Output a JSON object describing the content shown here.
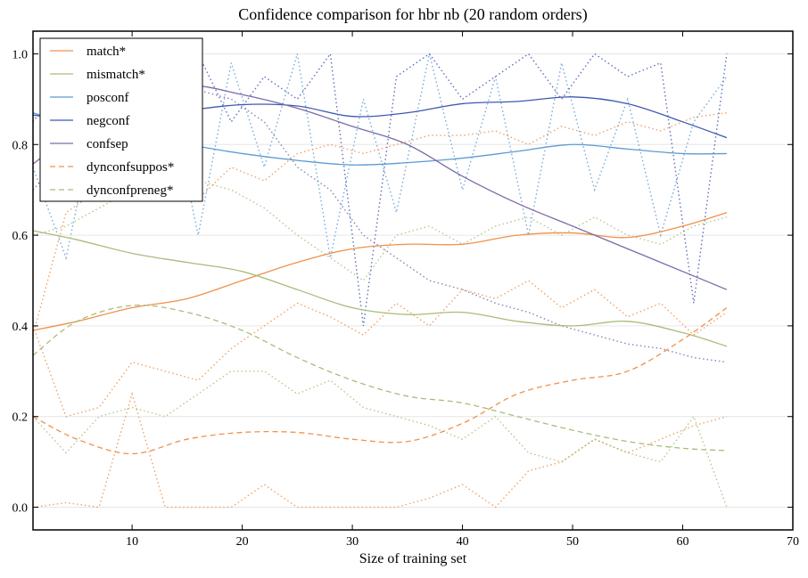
{
  "chart_data": {
    "type": "line",
    "title": "Confidence comparison for hbr nb (20 random orders)",
    "xlabel": "Size of training set",
    "ylabel": "",
    "xlim": [
      1,
      70
    ],
    "ylim": [
      -0.05,
      1.05
    ],
    "xticks": [
      10,
      20,
      30,
      40,
      50,
      60,
      70
    ],
    "yticks": [
      "0.0",
      "0.2",
      "0.4",
      "0.6",
      "0.8",
      "1.0"
    ],
    "grid": "horizontal",
    "legend_position": "top-left",
    "x": [
      1,
      5,
      10,
      15,
      20,
      25,
      30,
      35,
      40,
      45,
      50,
      55,
      60,
      64
    ],
    "series": [
      {
        "name": "match*",
        "color": "#f0914a",
        "style": "solid",
        "values": [
          0.39,
          0.41,
          0.44,
          0.46,
          0.5,
          0.54,
          0.57,
          0.58,
          0.58,
          0.6,
          0.605,
          0.595,
          0.62,
          0.65
        ]
      },
      {
        "name": "mismatch*",
        "color": "#a8bd7a",
        "style": "solid",
        "values": [
          0.61,
          0.59,
          0.56,
          0.54,
          0.52,
          0.48,
          0.44,
          0.425,
          0.43,
          0.41,
          0.4,
          0.41,
          0.385,
          0.355
        ]
      },
      {
        "name": "posconf",
        "color": "#5b9bd5",
        "style": "solid",
        "values": [
          0.87,
          0.84,
          0.82,
          0.8,
          0.78,
          0.765,
          0.755,
          0.76,
          0.77,
          0.785,
          0.8,
          0.79,
          0.78,
          0.78
        ]
      },
      {
        "name": "negconf",
        "color": "#3f58b0",
        "style": "solid",
        "values": [
          0.865,
          0.855,
          0.86,
          0.875,
          0.888,
          0.885,
          0.862,
          0.87,
          0.89,
          0.895,
          0.905,
          0.89,
          0.85,
          0.815
        ]
      },
      {
        "name": "confsep",
        "color": "#7d6aa8",
        "style": "solid",
        "values": [
          0.757,
          0.83,
          0.9,
          0.93,
          0.91,
          0.88,
          0.84,
          0.8,
          0.73,
          0.67,
          0.62,
          0.57,
          0.52,
          0.48
        ]
      },
      {
        "name": "dynconfsuppos*",
        "color": "#f0914a",
        "style": "dashed",
        "values": [
          0.2,
          0.15,
          0.118,
          0.15,
          0.165,
          0.165,
          0.15,
          0.145,
          0.185,
          0.25,
          0.28,
          0.3,
          0.37,
          0.44
        ]
      },
      {
        "name": "dynconfpreneg*",
        "color": "#a8bd7a",
        "style": "dashed",
        "values": [
          0.335,
          0.41,
          0.445,
          0.43,
          0.39,
          0.33,
          0.28,
          0.245,
          0.23,
          0.2,
          0.17,
          0.145,
          0.13,
          0.125
        ]
      }
    ],
    "runs_x": [
      1,
      4,
      7,
      10,
      13,
      16,
      19,
      22,
      25,
      28,
      31,
      34,
      37,
      40,
      43,
      46,
      49,
      52,
      55,
      58,
      61,
      64
    ],
    "runs": [
      {
        "color": "#5b9bd5",
        "values": [
          0.75,
          0.55,
          0.9,
          0.7,
          0.95,
          0.6,
          0.98,
          0.75,
          1.0,
          0.55,
          0.9,
          0.65,
          1.0,
          0.7,
          0.95,
          0.6,
          0.98,
          0.7,
          0.9,
          0.6,
          0.85,
          0.95
        ]
      },
      {
        "color": "#3f58b0",
        "values": [
          0.85,
          0.95,
          0.8,
          0.98,
          0.9,
          1.0,
          0.85,
          0.95,
          0.9,
          1.0,
          0.4,
          0.95,
          1.0,
          0.9,
          0.95,
          1.0,
          0.9,
          1.0,
          0.95,
          0.98,
          0.45,
          1.0
        ]
      },
      {
        "color": "#7d6aa8",
        "values": [
          0.7,
          0.78,
          0.88,
          0.92,
          0.95,
          0.92,
          0.9,
          0.85,
          0.75,
          0.7,
          0.6,
          0.55,
          0.5,
          0.48,
          0.45,
          0.43,
          0.4,
          0.38,
          0.36,
          0.35,
          0.33,
          0.32
        ]
      },
      {
        "color": "#f0914a",
        "values": [
          0.38,
          0.65,
          0.7,
          0.72,
          0.7,
          0.68,
          0.75,
          0.72,
          0.78,
          0.8,
          0.78,
          0.8,
          0.82,
          0.82,
          0.83,
          0.8,
          0.84,
          0.82,
          0.85,
          0.83,
          0.86,
          0.87
        ]
      },
      {
        "color": "#f0914a",
        "values": [
          0.4,
          0.2,
          0.22,
          0.32,
          0.3,
          0.28,
          0.35,
          0.4,
          0.45,
          0.42,
          0.38,
          0.45,
          0.4,
          0.48,
          0.46,
          0.5,
          0.44,
          0.48,
          0.42,
          0.45,
          0.38,
          0.43
        ]
      },
      {
        "color": "#f0914a",
        "values": [
          0.0,
          0.01,
          0.0,
          0.25,
          0.0,
          0.0,
          0.0,
          0.05,
          0.0,
          0.0,
          0.0,
          0.0,
          0.02,
          0.05,
          0.0,
          0.08,
          0.1,
          0.15,
          0.12,
          0.15,
          0.18,
          0.2
        ]
      },
      {
        "color": "#a8bd7a",
        "values": [
          0.6,
          0.62,
          0.66,
          0.7,
          0.68,
          0.72,
          0.7,
          0.66,
          0.6,
          0.55,
          0.5,
          0.6,
          0.62,
          0.58,
          0.62,
          0.64,
          0.6,
          0.64,
          0.6,
          0.58,
          0.62,
          0.64
        ]
      },
      {
        "color": "#a8bd7a",
        "values": [
          0.2,
          0.12,
          0.2,
          0.22,
          0.2,
          0.25,
          0.3,
          0.3,
          0.25,
          0.28,
          0.22,
          0.2,
          0.18,
          0.15,
          0.2,
          0.12,
          0.1,
          0.15,
          0.12,
          0.1,
          0.2,
          0.0
        ]
      }
    ]
  }
}
